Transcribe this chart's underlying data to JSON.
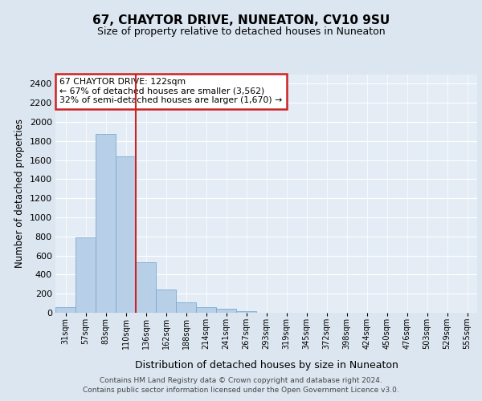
{
  "title1": "67, CHAYTOR DRIVE, NUNEATON, CV10 9SU",
  "title2": "Size of property relative to detached houses in Nuneaton",
  "xlabel": "Distribution of detached houses by size in Nuneaton",
  "ylabel": "Number of detached properties",
  "categories": [
    "31sqm",
    "57sqm",
    "83sqm",
    "110sqm",
    "136sqm",
    "162sqm",
    "188sqm",
    "214sqm",
    "241sqm",
    "267sqm",
    "293sqm",
    "319sqm",
    "345sqm",
    "372sqm",
    "398sqm",
    "424sqm",
    "450sqm",
    "476sqm",
    "503sqm",
    "529sqm",
    "555sqm"
  ],
  "values": [
    55,
    790,
    1870,
    1640,
    530,
    240,
    108,
    58,
    38,
    20,
    0,
    0,
    0,
    0,
    0,
    0,
    0,
    0,
    0,
    0,
    0
  ],
  "bar_color": "#b8cfe8",
  "bar_edge_color": "#7aaad0",
  "vline_x": 3.5,
  "vline_color": "#cc2222",
  "annotation_text": "67 CHAYTOR DRIVE: 122sqm\n← 67% of detached houses are smaller (3,562)\n32% of semi-detached houses are larger (1,670) →",
  "annotation_box_color": "#cc2222",
  "ylim": [
    0,
    2500
  ],
  "yticks": [
    0,
    200,
    400,
    600,
    800,
    1000,
    1200,
    1400,
    1600,
    1800,
    2000,
    2200,
    2400
  ],
  "footer1": "Contains HM Land Registry data © Crown copyright and database right 2024.",
  "footer2": "Contains public sector information licensed under the Open Government Licence v3.0.",
  "bg_color": "#dce6f0",
  "plot_bg_color": "#e4edf5"
}
